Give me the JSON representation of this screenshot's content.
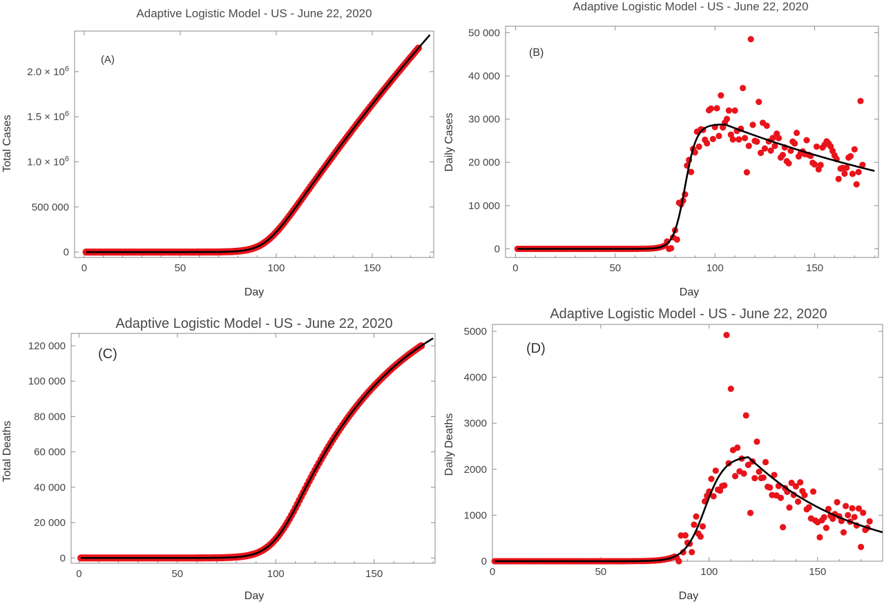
{
  "figure": {
    "colors": {
      "data": "#e8141b",
      "fit": "#000000"
    }
  },
  "chart_data": [
    {
      "id": "A",
      "type": "scatter",
      "title": "Adaptive Logistic Model - US - June 22, 2020",
      "panel_label": "(A)",
      "xlabel": "Day",
      "ylabel": "Total Cases",
      "xlim": [
        -5,
        182
      ],
      "ylim": [
        -60000,
        2450000
      ],
      "xticks": [
        0,
        50,
        100,
        150
      ],
      "xtick_labels": [
        "0",
        "50",
        "100",
        "150"
      ],
      "yticks": [
        0,
        500000,
        1000000,
        1500000,
        2000000
      ],
      "ytick_labels": [
        {
          "mantissa": "0",
          "exp": ""
        },
        {
          "mantissa": "500 000",
          "exp": ""
        },
        {
          "mantissa": "1.0 × 10",
          "exp": "6"
        },
        {
          "mantissa": "1.5 × 10",
          "exp": "6"
        },
        {
          "mantissa": "2.0 × 10",
          "exp": "6"
        }
      ],
      "x_range": [
        1,
        174
      ],
      "model": {
        "kind": "total",
        "start": 70,
        "t0": 95,
        "k": 0.19,
        "A": 28500,
        "B": 9800,
        "floor": 17000,
        "end": 180
      },
      "data_noise": 0
    },
    {
      "id": "B",
      "type": "scatter",
      "title": "Adaptive Logistic Model - US - June 22, 2020",
      "panel_label": "(B)",
      "xlabel": "Day",
      "ylabel": "Daily Cases",
      "xlim": [
        -5,
        182
      ],
      "ylim": [
        -2000,
        51500
      ],
      "xticks": [
        0,
        50,
        100,
        150
      ],
      "xtick_labels": [
        "0",
        "50",
        "100",
        "150"
      ],
      "yticks": [
        0,
        10000,
        20000,
        30000,
        40000,
        50000
      ],
      "ytick_labels": [
        "0",
        "10 000",
        "20 000",
        "30 000",
        "40 000",
        "50 000"
      ],
      "x_range": [
        1,
        174
      ],
      "model": {
        "kind": "daily",
        "start": 70,
        "t0": 85,
        "k": 0.35,
        "A": 28800,
        "B": 11200,
        "floor": 17000,
        "end": 180
      },
      "outliers": [
        [
          103,
          35500
        ],
        [
          107,
          32000
        ],
        [
          114,
          37200
        ],
        [
          116,
          17700
        ],
        [
          118,
          48500
        ],
        [
          122,
          34000
        ],
        [
          173,
          34200
        ]
      ],
      "data_noise": 4200
    },
    {
      "id": "C",
      "type": "scatter",
      "title": "Adaptive Logistic Model - US - June 22, 2020",
      "panel_label": "(C)",
      "xlabel": "Day",
      "ylabel": "Total Deaths",
      "xlim": [
        -4,
        181
      ],
      "ylim": [
        -3000,
        127000
      ],
      "xticks": [
        0,
        50,
        100,
        150
      ],
      "xtick_labels": [
        "0",
        "50",
        "100",
        "150"
      ],
      "yticks": [
        0,
        20000,
        40000,
        60000,
        80000,
        100000,
        120000
      ],
      "ytick_labels": [
        "0",
        "20 000",
        "40 000",
        "60 000",
        "80 000",
        "100 000",
        "120 000"
      ],
      "x_range": [
        1,
        174
      ],
      "model": {
        "kind": "total",
        "start": 80,
        "t0": 100,
        "k": 0.17,
        "A": 2300,
        "B": 1250,
        "floor": 420,
        "end": 180
      },
      "data_noise": 0
    },
    {
      "id": "D",
      "type": "scatter",
      "title": "Adaptive Logistic Model - US - June 22, 2020",
      "panel_label": "(D)",
      "xlabel": "Day",
      "ylabel": "Daily Deaths",
      "xlim": [
        0,
        180
      ],
      "ylim": [
        0,
        5150
      ],
      "xticks": [
        0,
        50,
        100,
        150
      ],
      "xtick_labels": [
        "0",
        "50",
        "100",
        "150"
      ],
      "yticks": [
        0,
        1000,
        2000,
        3000,
        4000,
        5000
      ],
      "ytick_labels": [
        "0",
        "1000",
        "2000",
        "3000",
        "4000",
        "5000"
      ],
      "x_range": [
        1,
        174
      ],
      "model": {
        "kind": "daily",
        "start": 80,
        "t0": 98,
        "k": 0.22,
        "A": 2290,
        "B": 1250,
        "floor": 420,
        "end": 180
      },
      "outliers": [
        [
          108,
          4920
        ],
        [
          110,
          3750
        ],
        [
          117,
          3170
        ],
        [
          122,
          2600
        ],
        [
          112,
          1850
        ],
        [
          119,
          1050
        ],
        [
          134,
          740
        ],
        [
          151,
          520
        ],
        [
          170,
          310
        ]
      ],
      "data_noise": 380
    }
  ]
}
